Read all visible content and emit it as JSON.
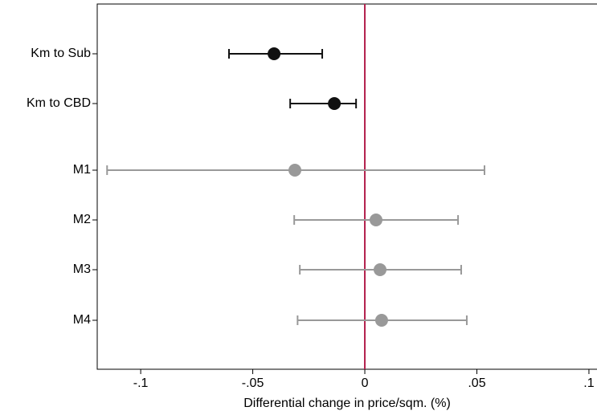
{
  "chart_data": {
    "type": "coefplot",
    "x_label": "Differential change in price/sqm. (%)",
    "categories": [
      "Km to Sub",
      "Km to CBD",
      "M1",
      "M2",
      "M3",
      "M4"
    ],
    "values": [
      -0.0405,
      -0.0136,
      -0.0312,
      0.005,
      0.0068,
      0.0075
    ],
    "lower": [
      -0.0606,
      -0.0333,
      -0.115,
      -0.0315,
      -0.029,
      -0.03
    ],
    "upper": [
      -0.019,
      -0.0039,
      0.0534,
      0.0416,
      0.043,
      0.0455
    ],
    "colors": [
      "#111111",
      "#111111",
      "#999999",
      "#999999",
      "#999999",
      "#999999"
    ],
    "xlim": [
      -0.1194,
      0.1036
    ],
    "xticks": [
      {
        "value": -0.1,
        "label": "-.1"
      },
      {
        "value": -0.05,
        "label": "-.05"
      },
      0,
      {
        "value": 0.05,
        "label": ".05"
      },
      {
        "value": 0.1,
        "label": ".1"
      }
    ],
    "reference_line": {
      "value": 0,
      "color": "#b3204d"
    }
  }
}
